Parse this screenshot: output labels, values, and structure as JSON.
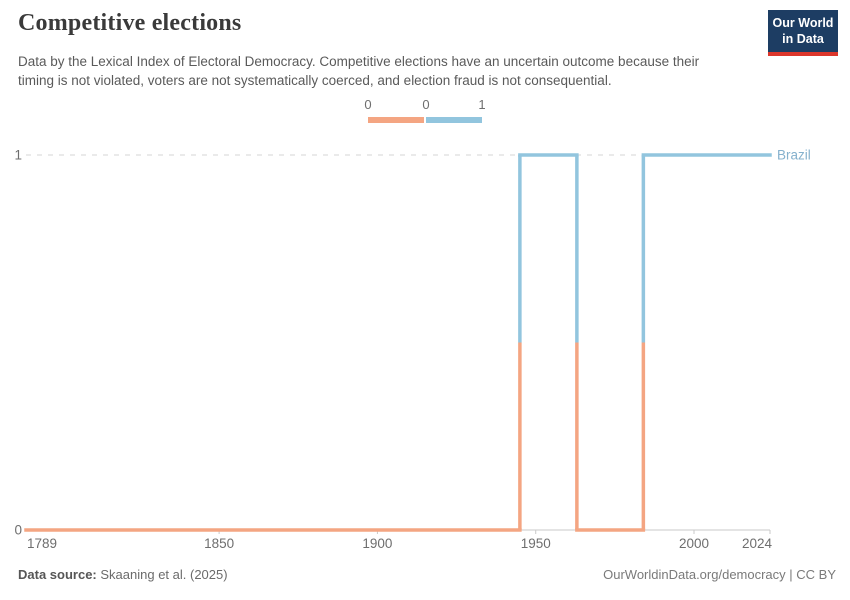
{
  "header": {
    "title": "Competitive elections",
    "subtitle": "Data by the Lexical Index of Electoral Democracy. Competitive elections have an uncertain outcome because their timing is not violated, voters are not systematically coerced, and election fraud is not consequential.",
    "logo": {
      "line1": "Our World",
      "line2": "in Data",
      "bg_color": "#1d3d63",
      "stripe_color": "#dc362b"
    }
  },
  "legend": {
    "tick_labels": [
      "0",
      "0",
      "1"
    ],
    "segments": [
      {
        "value": 0,
        "color": "#f4a582"
      },
      {
        "value": 1,
        "color": "#92c5de"
      }
    ]
  },
  "chart_data": {
    "type": "line",
    "subtype": "step",
    "title": "Competitive elections",
    "xlabel": "",
    "ylabel": "",
    "xlim": [
      1789,
      2024
    ],
    "ylim": [
      0,
      1
    ],
    "grid": "dashed horizontal gridline at y=1 only",
    "legend_position": "top-center",
    "colors": {
      "0": "#f4a582",
      "1": "#92c5de"
    },
    "series_label_color": "#85b1cd",
    "x_ticks": [
      {
        "year": 1789,
        "tick": false
      },
      {
        "year": 1850,
        "tick": true
      },
      {
        "year": 1900,
        "tick": true
      },
      {
        "year": 1950,
        "tick": true
      },
      {
        "year": 2000,
        "tick": true
      },
      {
        "year": 2024,
        "tick": true
      }
    ],
    "y_ticks": [
      0,
      1
    ],
    "series": [
      {
        "name": "Brazil",
        "steps": [
          {
            "from": 1789,
            "to": 1945,
            "value": 0
          },
          {
            "from": 1945,
            "to": 1963,
            "value": 1
          },
          {
            "from": 1963,
            "to": 1984,
            "value": 0
          },
          {
            "from": 1984,
            "to": 2024,
            "value": 1
          }
        ]
      }
    ]
  },
  "footer": {
    "source_label": "Data source:",
    "source_value": "Skaaning et al. (2025)",
    "right": "OurWorldinData.org/democracy | CC BY"
  }
}
